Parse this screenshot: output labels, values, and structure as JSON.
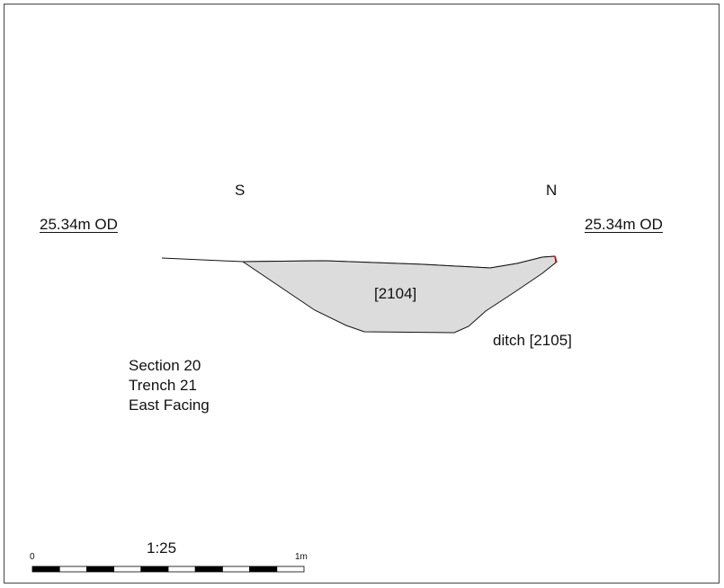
{
  "orientation": {
    "left": "S",
    "right": "N"
  },
  "datum": {
    "left": "25.34m OD",
    "right": "25.34m OD"
  },
  "feature": {
    "fill_label": "[2104]",
    "cut_label": "ditch [2105]",
    "fill_color": "#dcdcdc",
    "outline_color": "#111111",
    "marker_color": "#e00000"
  },
  "section_info": {
    "line1": "Section 20",
    "line2": "Trench 21",
    "line3": "East Facing"
  },
  "scale_bar": {
    "ratio": "1:25",
    "start_label": "0",
    "end_label": "1m",
    "segments": 10
  }
}
